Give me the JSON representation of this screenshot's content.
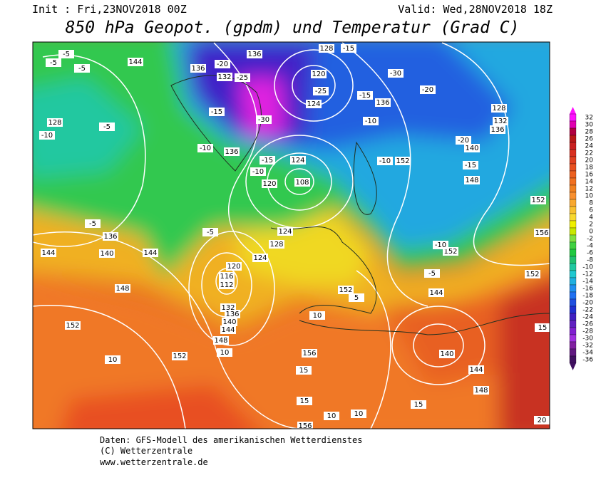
{
  "header": {
    "init": "Init : Fri,23NOV2018 00Z",
    "valid": "Valid: Wed,28NOV2018 18Z",
    "title": "850 hPa Geopot. (gpdm) und Temperatur (Grad C)"
  },
  "colorbar": {
    "levels": [
      32,
      30,
      28,
      26,
      24,
      22,
      20,
      18,
      16,
      14,
      12,
      10,
      8,
      6,
      4,
      2,
      0,
      -2,
      -4,
      -6,
      -8,
      -10,
      -12,
      -14,
      -16,
      -18,
      -20,
      -22,
      -24,
      -26,
      -28,
      -30,
      -32,
      -34,
      -36
    ],
    "colors": [
      "#ff10ff",
      "#e000b0",
      "#b00040",
      "#b81818",
      "#c82020",
      "#d83020",
      "#e04020",
      "#e85020",
      "#ec6020",
      "#f07020",
      "#f08020",
      "#f89030",
      "#f8a830",
      "#f8c030",
      "#f8d830",
      "#f0f000",
      "#c8e800",
      "#80e040",
      "#40d040",
      "#20c840",
      "#20c070",
      "#20c8a0",
      "#20c8d0",
      "#20b0e0",
      "#2090f0",
      "#2070f0",
      "#2050e0",
      "#2030d0",
      "#4020c0",
      "#6020c0",
      "#8020d0",
      "#a030e0",
      "#8020a0",
      "#601880",
      "#401060"
    ]
  },
  "map": {
    "labels": [
      -5,
      -5,
      144,
      -5,
      136,
      -20,
      132,
      -25,
      136,
      128,
      -15,
      120,
      -25,
      124,
      -30,
      -20,
      -15,
      136,
      128,
      132,
      136,
      -10,
      128,
      -5,
      -15,
      -30,
      -10,
      136,
      -15,
      124,
      -10,
      120,
      108,
      -10,
      -10,
      152,
      -20,
      140,
      -15,
      148,
      152,
      -5,
      136,
      144,
      140,
      144,
      -5,
      124,
      128,
      124,
      120,
      116,
      112,
      148,
      132,
      136,
      140,
      144,
      148,
      152,
      152,
      10,
      10,
      152,
      5,
      10,
      156,
      15,
      15,
      10,
      10,
      156,
      140,
      144,
      148,
      152,
      -10,
      -5,
      144,
      156,
      152,
      15,
      20,
      15
    ]
  },
  "footer": {
    "line1": "Daten: GFS-Modell des amerikanischen Wetterdienstes",
    "line2": "(C) Wetterzentrale",
    "line3": "www.wetterzentrale.de"
  }
}
